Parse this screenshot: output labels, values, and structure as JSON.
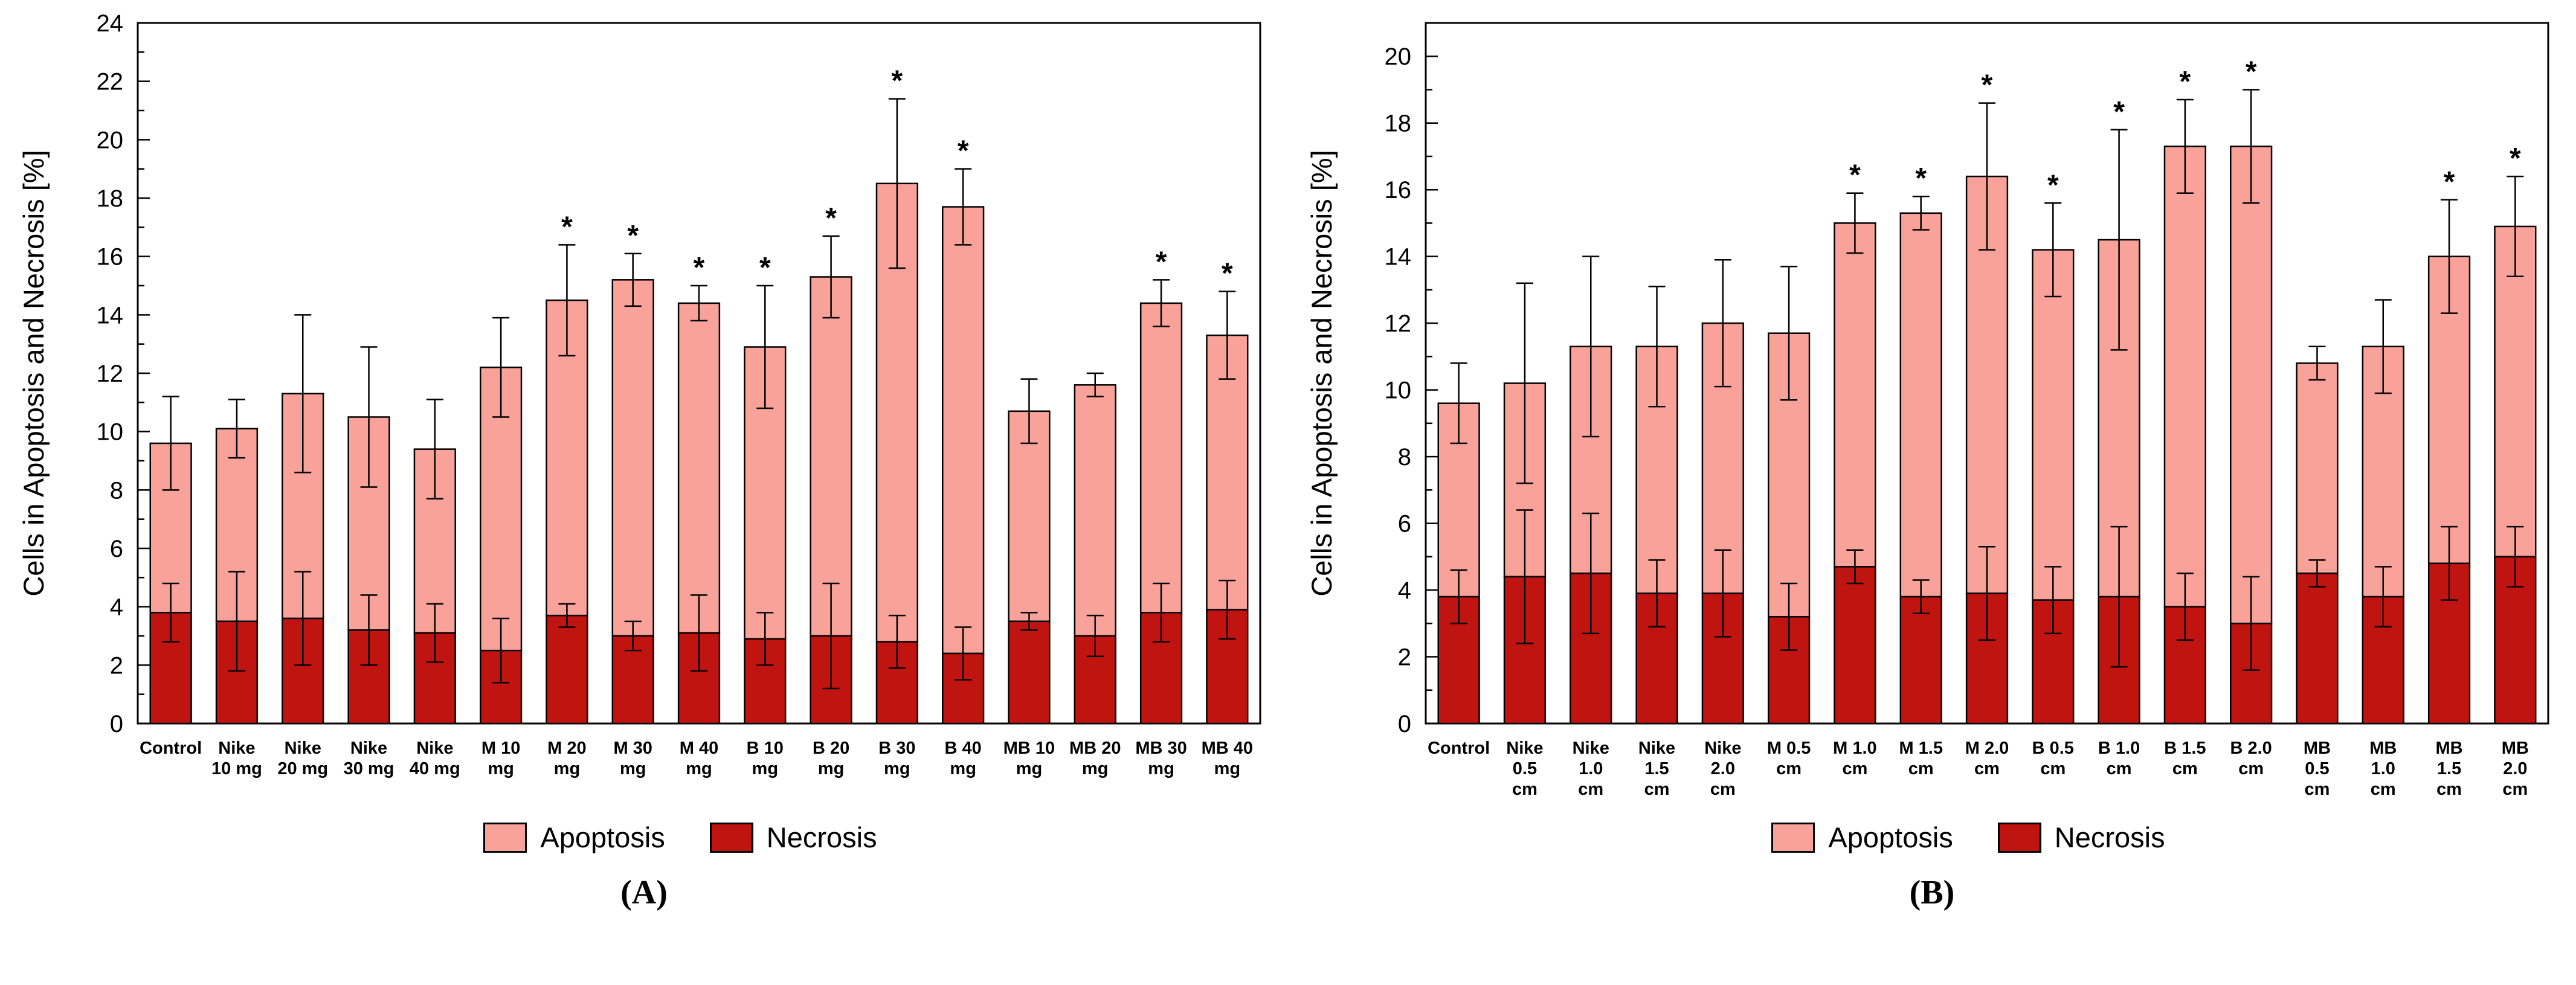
{
  "figure": {
    "description": "Two-panel stacked bar chart of cells in apoptosis and necrosis"
  },
  "chart_data": [
    {
      "type": "bar",
      "stacked": true,
      "panel_label": "(A)",
      "ylabel": "Cells in Apoptosis and Necrosis [%]",
      "ylim": [
        0,
        24
      ],
      "yticks": [
        0,
        2,
        4,
        6,
        8,
        10,
        12,
        14,
        16,
        18,
        20,
        22,
        24
      ],
      "minor_tick_step": 1,
      "grid": false,
      "legend": [
        "Apoptosis",
        "Necrosis"
      ],
      "legend_position": "bottom",
      "colors": {
        "apoptosis": "#F8A29A",
        "necrosis": "#C01410"
      },
      "categories": [
        [
          "Control"
        ],
        [
          "Nike",
          "10 mg"
        ],
        [
          "Nike",
          "20 mg"
        ],
        [
          "Nike",
          "30 mg"
        ],
        [
          "Nike",
          "40 mg"
        ],
        [
          "M 10",
          "mg"
        ],
        [
          "M 20",
          "mg"
        ],
        [
          "M 30",
          "mg"
        ],
        [
          "M 40",
          "mg"
        ],
        [
          "B 10",
          "mg"
        ],
        [
          "B 20",
          "mg"
        ],
        [
          "B 30",
          "mg"
        ],
        [
          "B 40",
          "mg"
        ],
        [
          "MB 10",
          "mg"
        ],
        [
          "MB 20",
          "mg"
        ],
        [
          "MB 30",
          "mg"
        ],
        [
          "MB 40",
          "mg"
        ]
      ],
      "total": [
        9.6,
        10.1,
        11.3,
        10.5,
        9.4,
        12.2,
        14.5,
        15.2,
        14.4,
        12.9,
        15.3,
        18.5,
        17.7,
        10.7,
        11.6,
        14.4,
        13.3
      ],
      "total_err": [
        1.6,
        1.0,
        2.7,
        2.4,
        1.7,
        1.7,
        1.9,
        0.9,
        0.6,
        2.1,
        1.4,
        2.9,
        1.3,
        1.1,
        0.4,
        0.8,
        1.5
      ],
      "necrosis": [
        3.8,
        3.5,
        3.6,
        3.2,
        3.1,
        2.5,
        3.7,
        3.0,
        3.1,
        2.9,
        3.0,
        2.8,
        2.4,
        3.5,
        3.0,
        3.8,
        3.9
      ],
      "necrosis_err": [
        1.0,
        1.7,
        1.6,
        1.2,
        1.0,
        1.1,
        0.4,
        0.5,
        1.3,
        0.9,
        1.8,
        0.9,
        0.9,
        0.3,
        0.7,
        1.0,
        1.0
      ],
      "significant": [
        false,
        false,
        false,
        false,
        false,
        false,
        true,
        true,
        true,
        true,
        true,
        true,
        true,
        false,
        false,
        true,
        true
      ],
      "significance_marker": "*"
    },
    {
      "type": "bar",
      "stacked": true,
      "panel_label": "(B)",
      "ylabel": "Cells in Apoptosis and Necrosis [%]",
      "ylim": [
        0,
        21
      ],
      "yticks": [
        0,
        2,
        4,
        6,
        8,
        10,
        12,
        14,
        16,
        18,
        20
      ],
      "minor_tick_step": 1,
      "grid": false,
      "legend": [
        "Apoptosis",
        "Necrosis"
      ],
      "legend_position": "bottom",
      "colors": {
        "apoptosis": "#F8A29A",
        "necrosis": "#C01410"
      },
      "categories": [
        [
          "Control"
        ],
        [
          "Nike",
          "0.5",
          "cm"
        ],
        [
          "Nike",
          "1.0",
          "cm"
        ],
        [
          "Nike",
          "1.5",
          "cm"
        ],
        [
          "Nike",
          "2.0",
          "cm"
        ],
        [
          "M 0.5",
          "cm"
        ],
        [
          "M 1.0",
          "cm"
        ],
        [
          "M 1.5",
          "cm"
        ],
        [
          "M 2.0",
          "cm"
        ],
        [
          "B 0.5",
          "cm"
        ],
        [
          "B 1.0",
          "cm"
        ],
        [
          "B 1.5",
          "cm"
        ],
        [
          "B 2.0",
          "cm"
        ],
        [
          "MB",
          "0.5",
          "cm"
        ],
        [
          "MB",
          "1.0",
          "cm"
        ],
        [
          "MB",
          "1.5",
          "cm"
        ],
        [
          "MB",
          "2.0",
          "cm"
        ]
      ],
      "total": [
        9.6,
        10.2,
        11.3,
        11.3,
        12.0,
        11.7,
        15.0,
        15.3,
        16.4,
        14.2,
        14.5,
        17.3,
        17.3,
        10.8,
        11.3,
        14.0,
        14.9
      ],
      "total_err": [
        1.2,
        3.0,
        2.7,
        1.8,
        1.9,
        2.0,
        0.9,
        0.5,
        2.2,
        1.4,
        3.3,
        1.4,
        1.7,
        0.5,
        1.4,
        1.7,
        1.5
      ],
      "necrosis": [
        3.8,
        4.4,
        4.5,
        3.9,
        3.9,
        3.2,
        4.7,
        3.8,
        3.9,
        3.7,
        3.8,
        3.5,
        3.0,
        4.5,
        3.8,
        4.8,
        5.0
      ],
      "necrosis_err": [
        0.8,
        2.0,
        1.8,
        1.0,
        1.3,
        1.0,
        0.5,
        0.5,
        1.4,
        1.0,
        2.1,
        1.0,
        1.4,
        0.4,
        0.9,
        1.1,
        0.9
      ],
      "significant": [
        false,
        false,
        false,
        false,
        false,
        false,
        true,
        true,
        true,
        true,
        true,
        true,
        true,
        false,
        false,
        true,
        true
      ],
      "significance_marker": "*"
    }
  ]
}
